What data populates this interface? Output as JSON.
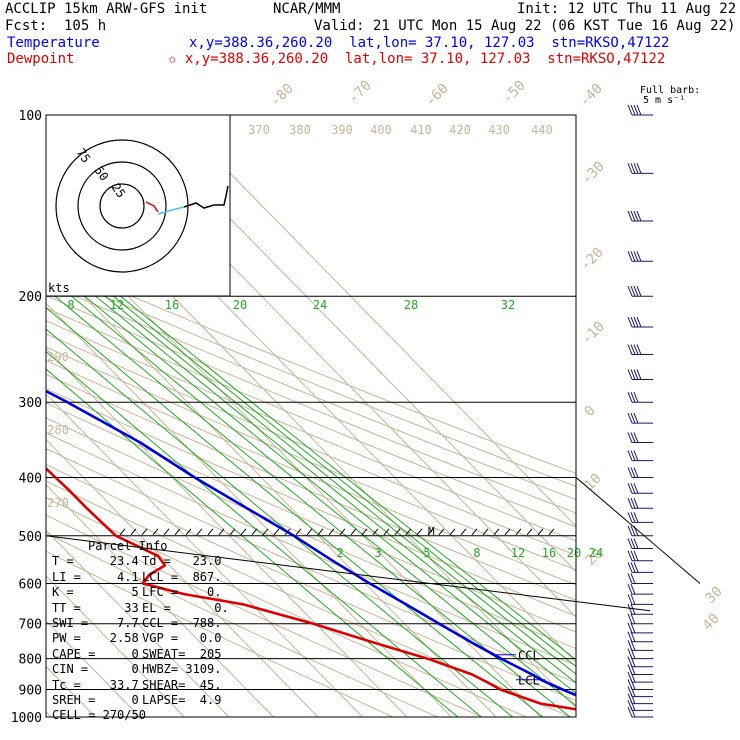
{
  "header": {
    "line1_left": "ACCLIP 15km ARW-GFS init",
    "line1_mid": "NCAR/MMM",
    "line1_right": "Init: 12 UTC Thu 11 Aug 22",
    "line2_left": "Fcst:  105 h",
    "line2_right": "Valid: 21 UTC Mon 15 Aug 22 (06 KST Tue 16 Aug 22)",
    "temp_label": "Temperature",
    "temp_info": "x,y=388.36,260.20  lat,lon= 37.10, 127.03  stn=RKSO,47122",
    "dew_label": "Dewpoint",
    "dew_info": "✩ x,y=388.36,260.20  lat,lon= 37.10, 127.03  stn=RKSO,47122",
    "barb_label_1": "Full barb:",
    "barb_label_2": "5 m s⁻¹"
  },
  "colors": {
    "temperature": "#0000dd",
    "dewpoint": "#dd0000",
    "theta": "#c8b89a",
    "mixing_ratio": "#22aa22",
    "isotherm": "#c8b89a",
    "barbs": "#1a1a66",
    "hodo_wind": "#55bbee"
  },
  "hodograph": {
    "ring_labels": [
      "25",
      "50",
      "75"
    ],
    "unit": "kts"
  },
  "chart_data": {
    "type": "skew-T log-P sounding",
    "y_axis": "pressure (hPa), log scale",
    "pressure_ticks": [
      100,
      200,
      300,
      400,
      500,
      600,
      700,
      800,
      900,
      1000
    ],
    "isotherm_labels": [
      "-80",
      "-70",
      "-60",
      "-50",
      "-40",
      "-30",
      "-20",
      "-10",
      "0",
      "10",
      "20",
      "30",
      "40"
    ],
    "theta_labels": [
      "370",
      "380",
      "390",
      "400",
      "410",
      "420",
      "430",
      "440",
      "290",
      "280",
      "270"
    ],
    "mixing_ratio_labels_upper": [
      "8",
      "12",
      "16",
      "20",
      "24",
      "28",
      "32"
    ],
    "mixing_ratio_labels_lower": [
      "2",
      "3",
      "5",
      "8",
      "12",
      "16",
      "20",
      "24"
    ],
    "temperature": [
      {
        "p": 985,
        "t": 24.4
      },
      {
        "p": 975,
        "t": 25.5
      },
      {
        "p": 958,
        "t": 25.8
      },
      {
        "p": 940,
        "t": 24.5
      },
      {
        "p": 900,
        "t": 21.0
      },
      {
        "p": 870,
        "t": 18.5
      },
      {
        "p": 850,
        "t": 17.5
      },
      {
        "p": 800,
        "t": 14.0
      },
      {
        "p": 750,
        "t": 10.8
      },
      {
        "p": 700,
        "t": 7.8
      },
      {
        "p": 650,
        "t": 4.6
      },
      {
        "p": 600,
        "t": 1.0
      },
      {
        "p": 550,
        "t": -2.3
      },
      {
        "p": 500,
        "t": -5.5
      },
      {
        "p": 450,
        "t": -10.0
      },
      {
        "p": 400,
        "t": -15.0
      },
      {
        "p": 350,
        "t": -19.5
      },
      {
        "p": 300,
        "t": -27.0
      },
      {
        "p": 250,
        "t": -37.0
      },
      {
        "p": 200,
        "t": -49.5
      },
      {
        "p": 175,
        "t": -57.0
      },
      {
        "p": 150,
        "t": -65.5
      },
      {
        "p": 125,
        "t": -74.5
      },
      {
        "p": 115,
        "t": -77.0
      },
      {
        "p": 108,
        "t": -76.0
      },
      {
        "p": 100,
        "t": -74.5
      }
    ],
    "dewpoint": [
      {
        "p": 985,
        "t": 23.2
      },
      {
        "p": 975,
        "t": 21.0
      },
      {
        "p": 950,
        "t": 13.0
      },
      {
        "p": 900,
        "t": 7.0
      },
      {
        "p": 880,
        "t": 6.0
      },
      {
        "p": 850,
        "t": 4.0
      },
      {
        "p": 800,
        "t": -2.5
      },
      {
        "p": 750,
        "t": -11.5
      },
      {
        "p": 700,
        "t": -20.5
      },
      {
        "p": 650,
        "t": -32.0
      },
      {
        "p": 625,
        "t": -43.0
      },
      {
        "p": 600,
        "t": -50.0
      },
      {
        "p": 580,
        "t": -46.5
      },
      {
        "p": 560,
        "t": -41.0
      },
      {
        "p": 540,
        "t": -40.5
      },
      {
        "p": 500,
        "t": -45.5
      },
      {
        "p": 450,
        "t": -46.0
      },
      {
        "p": 420,
        "t": -46.0
      },
      {
        "p": 380,
        "t": -46.5
      },
      {
        "p": 350,
        "t": -41.5
      },
      {
        "p": 330,
        "t": -39.5
      },
      {
        "p": 300,
        "t": -43.5
      },
      {
        "p": 270,
        "t": -47.0
      },
      {
        "p": 245,
        "t": -50.5
      },
      {
        "p": 225,
        "t": -55.5
      },
      {
        "p": 200,
        "t": -62.0
      },
      {
        "p": 180,
        "t": -69.5
      },
      {
        "p": 160,
        "t": -76.0
      },
      {
        "p": 140,
        "t": -83.0
      },
      {
        "p": 125,
        "t": -87.0
      },
      {
        "p": 110,
        "t": -89.5
      },
      {
        "p": 100,
        "t": -91.0
      }
    ],
    "level_labels": [
      {
        "text": "CCL",
        "p": 788
      },
      {
        "text": "LCL",
        "p": 867
      },
      {
        "text": "M",
        "p": 495
      }
    ]
  },
  "parcel": {
    "title": "Parcel Info",
    "rows": [
      {
        "l": "T =     23.4",
        "r": "Td =   23.0"
      },
      {
        "l": "LI =     4.1",
        "r": "LCL =  867."
      },
      {
        "l": "K =        5",
        "r": "LFC =    0."
      },
      {
        "l": "TT =      33",
        "r": "EL =      0."
      },
      {
        "l": "SWI =    7.7",
        "r": "CCL =  788."
      },
      {
        "l": "PW =    2.58",
        "r": "VGP =   0.0"
      },
      {
        "l": "CAPE =     0",
        "r": "SWEAT=  205"
      },
      {
        "l": "CIN =      0",
        "r": "HWBZ= 3109."
      },
      {
        "l": "Tc =    33.7",
        "r": "SHEAR=  45."
      },
      {
        "l": "SREH =     0",
        "r": "LAPSE=  4.9"
      }
    ],
    "cell": "CELL = 270/50"
  }
}
